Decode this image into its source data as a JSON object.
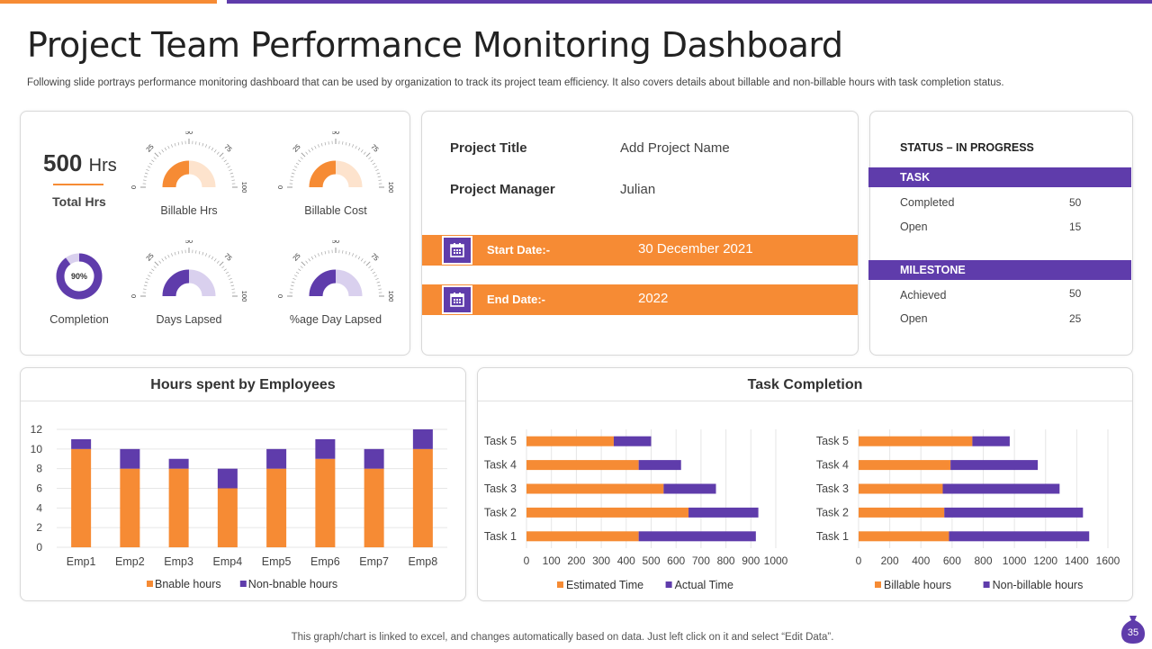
{
  "header": {
    "title": "Project Team Performance Monitoring Dashboard",
    "subtitle": "Following slide portrays performance monitoring dashboard that can be used by organization to track its project team efficiency. It also covers details about billable and non-billable hours with task completion status."
  },
  "colors": {
    "orange": "#f68b34",
    "orange_light": "#fde3cd",
    "purple": "#5f3cab",
    "purple_light": "#d9d0ee"
  },
  "kpi": {
    "total_value": "500",
    "total_unit": "Hrs",
    "total_label": "Total Hrs",
    "completion_pct": 90,
    "completion_text": "90%",
    "completion_label": "Completion"
  },
  "gauges": [
    {
      "label": "Billable Hrs",
      "value": 50,
      "color": "orange",
      "ticks": [
        "0",
        "25",
        "50",
        "75",
        "100"
      ]
    },
    {
      "label": "Billable Cost",
      "value": 50,
      "color": "orange",
      "ticks": [
        "0",
        "25",
        "50",
        "75",
        "100"
      ]
    },
    {
      "label": "Days Lapsed",
      "value": 50,
      "color": "purple",
      "ticks": [
        "0",
        "25",
        "50",
        "75",
        "100"
      ]
    },
    {
      "label": "%age Day Lapsed",
      "value": 50,
      "color": "purple",
      "ticks": [
        "0",
        "25",
        "50",
        "75",
        "100"
      ]
    }
  ],
  "project": {
    "title_label": "Project Title",
    "title_value": "Add Project Name",
    "manager_label": "Project Manager",
    "manager_value": "Julian",
    "start_label": "Start Date:-",
    "start_value": "30 December 2021",
    "end_label": "End Date:-",
    "end_value": "2022",
    "calendar_icon": "calendar-icon"
  },
  "status": {
    "title": "STATUS – IN PROGRESS",
    "task_header": "TASK",
    "task_rows": [
      {
        "label": "Completed",
        "value": "50"
      },
      {
        "label": "Open",
        "value": "15"
      }
    ],
    "milestone_header": "MILESTONE",
    "milestone_rows": [
      {
        "label": "Achieved",
        "value": "50"
      },
      {
        "label": "Open",
        "value": "25"
      }
    ]
  },
  "hours_card": {
    "title": "Hours spent by Employees"
  },
  "task_card": {
    "title": "Task Completion"
  },
  "chart_data": [
    {
      "type": "bar",
      "stacked": true,
      "title": "Hours spent by Employees",
      "categories": [
        "Emp1",
        "Emp2",
        "Emp3",
        "Emp4",
        "Emp5",
        "Emp6",
        "Emp7",
        "Emp8"
      ],
      "series": [
        {
          "name": "Bnable hours",
          "color": "orange",
          "values": [
            10,
            8,
            8,
            6,
            8,
            9,
            8,
            10
          ]
        },
        {
          "name": "Non-bnable hours",
          "color": "purple",
          "values": [
            1,
            2,
            1,
            2,
            2,
            2,
            2,
            2
          ]
        }
      ],
      "yticks": [
        "0",
        "2",
        "4",
        "6",
        "8",
        "10",
        "12"
      ],
      "ylim": [
        0,
        12
      ],
      "grid": true,
      "legend": "bottom"
    },
    {
      "type": "bar",
      "orientation": "horizontal",
      "stacked": true,
      "categories": [
        "Task 1",
        "Task 2",
        "Task 3",
        "Task 4",
        "Task 5"
      ],
      "series": [
        {
          "name": "Estimated Time",
          "color": "orange",
          "values": [
            450,
            650,
            550,
            450,
            350
          ]
        },
        {
          "name": "Actual Time",
          "color": "purple",
          "values": [
            470,
            280,
            210,
            170,
            150
          ]
        }
      ],
      "xticks": [
        "0",
        "100",
        "200",
        "300",
        "400",
        "500",
        "600",
        "700",
        "800",
        "900",
        "1000"
      ],
      "xlim": [
        0,
        1000
      ],
      "grid": true,
      "legend": "bottom"
    },
    {
      "type": "bar",
      "orientation": "horizontal",
      "stacked": true,
      "categories": [
        "Task 1",
        "Task 2",
        "Task 3",
        "Task 4",
        "Task 5"
      ],
      "series": [
        {
          "name": "Billable hours",
          "color": "orange",
          "values": [
            580,
            550,
            540,
            590,
            730
          ]
        },
        {
          "name": "Non-billable hours",
          "color": "purple",
          "values": [
            900,
            890,
            750,
            560,
            240
          ]
        }
      ],
      "xticks": [
        "0",
        "200",
        "400",
        "600",
        "800",
        "1000",
        "1200",
        "1400",
        "1600"
      ],
      "xlim": [
        0,
        1600
      ],
      "grid": true,
      "legend": "bottom"
    }
  ],
  "footer": {
    "note": "This graph/chart is linked to excel, and changes automatically based on data. Just left click on it and select “Edit Data”.",
    "page_number": "35"
  }
}
